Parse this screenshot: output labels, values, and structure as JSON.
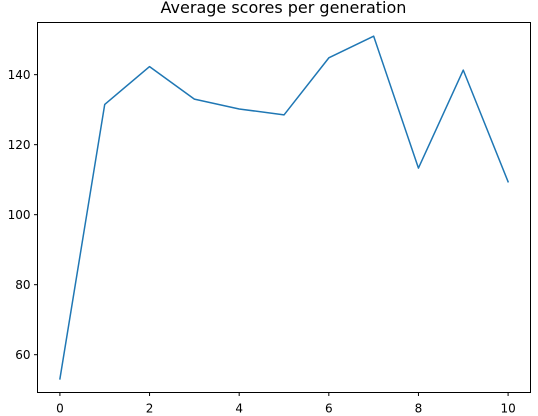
{
  "chart_data": {
    "type": "line",
    "title": "Average scores per generation",
    "xlabel": "",
    "ylabel": "",
    "x": [
      0,
      1,
      2,
      3,
      4,
      5,
      6,
      7,
      8,
      9,
      10
    ],
    "series": [
      {
        "color": "#1f77b4",
        "values": [
          53.1,
          131.5,
          142.3,
          133.0,
          130.2,
          128.5,
          144.8,
          151.0,
          113.3,
          141.3,
          109.4
        ]
      }
    ],
    "xlim": [
      -0.5,
      10.5
    ],
    "ylim": [
      49.2,
      154.9
    ],
    "xticks": [
      0,
      2,
      4,
      6,
      8,
      10
    ],
    "yticks": [
      60,
      80,
      100,
      120,
      140
    ],
    "grid": false,
    "legend": "none"
  }
}
